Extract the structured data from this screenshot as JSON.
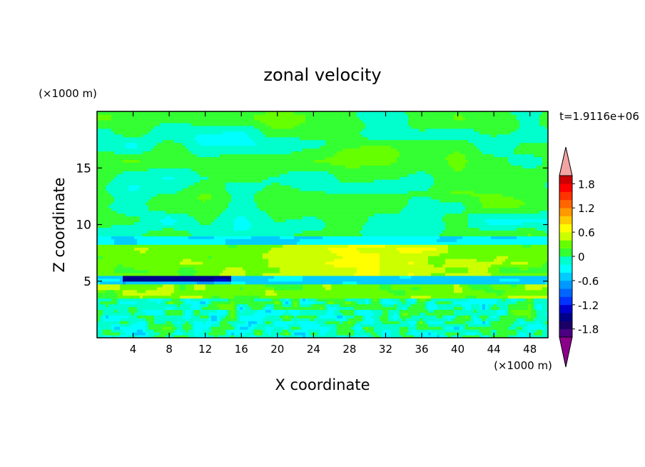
{
  "chart_data": {
    "type": "heatmap",
    "title": "zonal velocity",
    "xlabel": "X coordinate",
    "ylabel": "Z coordinate",
    "x_unit_label": "(×1000 m)",
    "y_unit_label": "(×1000 m)",
    "time_label": "t=1.9116e+06",
    "xlim": [
      0,
      50
    ],
    "ylim": [
      0,
      20
    ],
    "x_ticks": [
      4,
      8,
      12,
      16,
      20,
      24,
      28,
      32,
      36,
      40,
      44,
      48
    ],
    "y_ticks": [
      5,
      10,
      15
    ],
    "colorbar": {
      "levels": [
        -2.0,
        -1.8,
        -1.6,
        -1.4,
        -1.2,
        -1.0,
        -0.8,
        -0.6,
        -0.4,
        -0.2,
        0.0,
        0.2,
        0.4,
        0.6,
        0.8,
        1.0,
        1.2,
        1.4,
        1.6,
        1.8,
        2.0
      ],
      "colors": [
        "#4b0082",
        "#1a0066",
        "#00008b",
        "#0000cd",
        "#0033ff",
        "#0066ff",
        "#0099ff",
        "#00ccff",
        "#00ffff",
        "#00ffcc",
        "#33ff33",
        "#66ff00",
        "#ccff00",
        "#ffff00",
        "#ffcc00",
        "#ff9900",
        "#ff6600",
        "#ff3300",
        "#ff0000",
        "#cc0000"
      ],
      "under_color": "#8b008b",
      "over_color": "#f4a3a3",
      "tick_labels": [
        "1.8",
        "1.2",
        "0.6",
        "0",
        "-0.6",
        "-1.2",
        "-1.8"
      ]
    },
    "field_description_layers": [
      {
        "z_range": [
          9,
          20
        ],
        "value_min": -0.2,
        "value_max": 0.2
      },
      {
        "z_range": [
          5.5,
          8.5
        ],
        "value_min": 0.0,
        "value_max": 0.6
      },
      {
        "z_range": [
          4.8,
          5.8
        ],
        "value_min": -1.8,
        "value_max": -0.4,
        "x_range": [
          3,
          15
        ]
      },
      {
        "z_range": [
          3.5,
          4.5
        ],
        "value_min": 0.0,
        "value_max": 0.6
      },
      {
        "z_range": [
          0,
          3.5
        ],
        "value_min": -0.6,
        "value_max": 0.6
      }
    ]
  }
}
